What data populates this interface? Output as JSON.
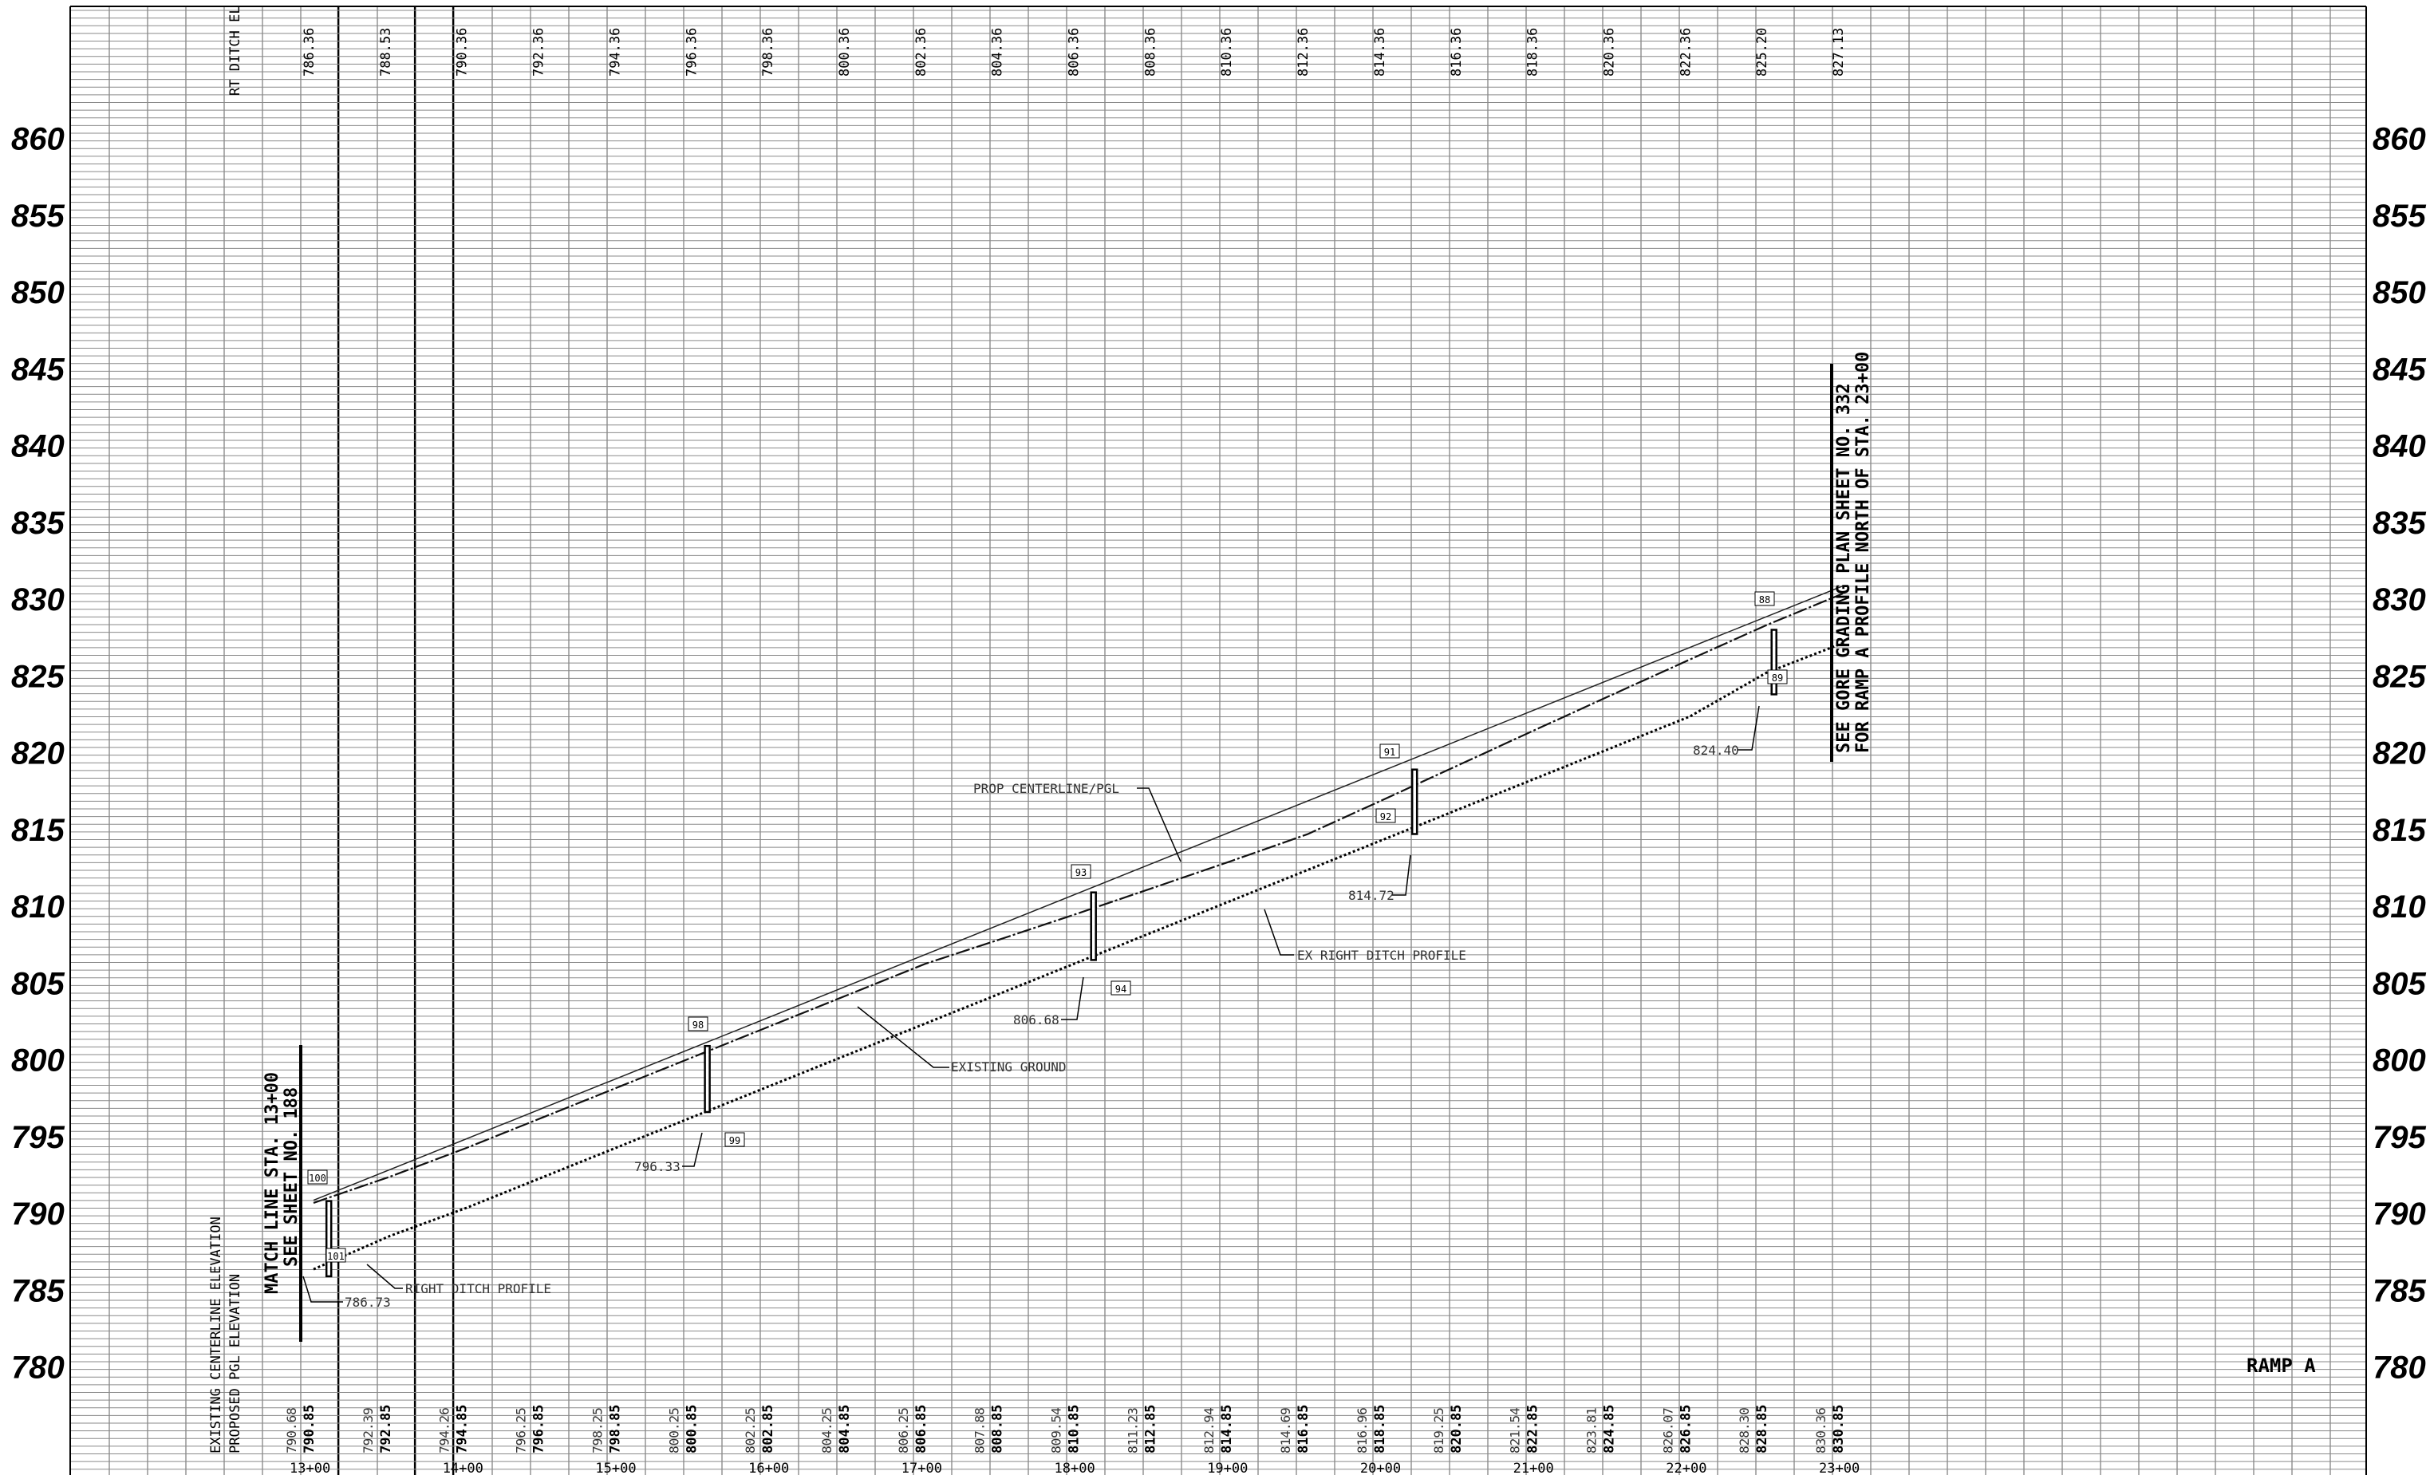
{
  "sheet": {
    "ramp_label": "RAMP A",
    "rt_ditch_header": "RT DITCH EL",
    "row_label_existing": "EXISTING CENTERLINE ELEVATION",
    "row_label_proposed": "PROPOSED PGL ELEVATION",
    "matchline": "MATCH LINE STA. 13+00",
    "matchline_sheet": "SEE SHEET NO. 188",
    "gore_note_1": "SEE GORE GRADING PLAN SHEET NO. 332",
    "gore_note_2": "FOR RAMP A PROFILE NORTH OF STA. 23+00"
  },
  "elev_labels": [
    "860",
    "855",
    "850",
    "845",
    "840",
    "835",
    "830",
    "825",
    "820",
    "815",
    "810",
    "805",
    "800",
    "795",
    "790",
    "785",
    "780"
  ],
  "rt_ditch_el": [
    "786.36",
    "788.53",
    "790.36",
    "792.36",
    "794.36",
    "796.36",
    "798.36",
    "800.36",
    "802.36",
    "804.36",
    "806.36",
    "808.36",
    "810.36",
    "812.36",
    "814.36",
    "816.36",
    "818.36",
    "820.36",
    "822.36",
    "825.20",
    "827.13"
  ],
  "existing_el": [
    "790.68",
    "792.39",
    "794.26",
    "796.25",
    "798.25",
    "800.25",
    "802.25",
    "804.25",
    "806.25",
    "807.88",
    "809.54",
    "811.23",
    "812.94",
    "814.69",
    "816.96",
    "819.25",
    "821.54",
    "823.81",
    "826.07",
    "828.30",
    "830.36"
  ],
  "proposed_el": [
    "790.85",
    "792.85",
    "794.85",
    "796.85",
    "798.85",
    "800.85",
    "802.85",
    "804.85",
    "806.85",
    "808.85",
    "810.85",
    "812.85",
    "814.85",
    "816.85",
    "818.85",
    "820.85",
    "822.85",
    "824.85",
    "826.85",
    "828.85",
    "830.85"
  ],
  "stations": [
    "13+00",
    "14+00",
    "15+00",
    "16+00",
    "17+00",
    "18+00",
    "19+00",
    "20+00",
    "21+00",
    "22+00",
    "23+00"
  ],
  "annotations": {
    "prop_centerline": "PROP CENTERLINE/PGL",
    "existing_ground": "EXISTING GROUND",
    "right_ditch_profile": "RIGHT DITCH PROFILE",
    "ex_right_ditch_profile": "EX RIGHT DITCH PROFILE"
  },
  "ditch_callouts": [
    {
      "value": "786.73"
    },
    {
      "value": "796.33"
    },
    {
      "value": "806.68"
    },
    {
      "value": "814.72"
    },
    {
      "value": "824.40"
    }
  ],
  "bubbles": [
    "100",
    "101",
    "98",
    "99",
    "93",
    "94",
    "91",
    "92",
    "88",
    "89"
  ],
  "profiles": {
    "proposed_pgl": [
      [
        0,
        790.85
      ],
      [
        20,
        830.85
      ]
    ],
    "existing_ground": [
      [
        0,
        790.68
      ],
      [
        1,
        792.39
      ],
      [
        2,
        794.26
      ],
      [
        3,
        796.25
      ],
      [
        4,
        798.25
      ],
      [
        5,
        800.25
      ],
      [
        6,
        802.25
      ],
      [
        7,
        804.25
      ],
      [
        8,
        806.25
      ],
      [
        9,
        807.88
      ],
      [
        10,
        809.54
      ],
      [
        11,
        811.23
      ],
      [
        12,
        812.94
      ],
      [
        13,
        814.69
      ],
      [
        14,
        816.96
      ],
      [
        15,
        819.25
      ],
      [
        16,
        821.54
      ],
      [
        17,
        823.81
      ],
      [
        18,
        826.07
      ],
      [
        19,
        828.3
      ],
      [
        20,
        830.36
      ]
    ],
    "right_ditch": [
      [
        0,
        786.36
      ],
      [
        1,
        788.53
      ],
      [
        2,
        790.36
      ],
      [
        3,
        792.36
      ],
      [
        4,
        794.36
      ],
      [
        5,
        796.36
      ],
      [
        6,
        798.36
      ],
      [
        7,
        800.36
      ],
      [
        8,
        802.36
      ],
      [
        9,
        804.36
      ],
      [
        10,
        806.36
      ],
      [
        11,
        808.36
      ],
      [
        12,
        810.36
      ],
      [
        13,
        812.36
      ],
      [
        14,
        814.36
      ],
      [
        15,
        816.36
      ],
      [
        16,
        818.36
      ],
      [
        17,
        820.36
      ],
      [
        18,
        822.36
      ],
      [
        19,
        825.2
      ],
      [
        20,
        827.13
      ]
    ]
  },
  "markers": [
    {
      "idx": 0.2,
      "top": 790.8,
      "bottom": 785.9
    },
    {
      "idx": 5.15,
      "top": 800.9,
      "bottom": 796.6
    },
    {
      "idx": 10.2,
      "top": 810.9,
      "bottom": 806.5
    },
    {
      "idx": 14.4,
      "top": 818.9,
      "bottom": 814.7
    },
    {
      "idx": 19.1,
      "top": 828.0,
      "bottom": 823.8
    }
  ]
}
